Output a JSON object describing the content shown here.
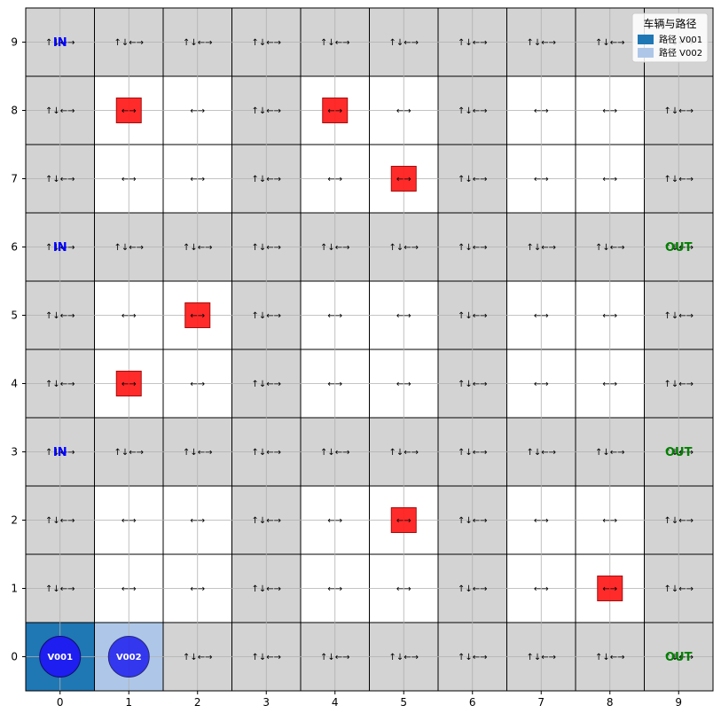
{
  "chart_data": {
    "type": "heatmap",
    "title": "",
    "xlabel": "",
    "ylabel": "",
    "grid_size": [
      10,
      10
    ],
    "x_ticks": [
      "0",
      "1",
      "2",
      "3",
      "4",
      "5",
      "6",
      "7",
      "8",
      "9"
    ],
    "y_ticks": [
      "0",
      "1",
      "2",
      "3",
      "4",
      "5",
      "6",
      "7",
      "8",
      "9"
    ],
    "colors": {
      "aisle": "#d3d3d3",
      "rack": "#ffffff",
      "obstacle": "#ff2020",
      "in_port": "#0000ff",
      "out_port": "#008000",
      "vehicle_fill": "#1e1ef0",
      "vehicle_v001_cell": "#1f77b4",
      "vehicle_v002_cell": "#aec7e8",
      "grid_line": "#000000",
      "gridline_light": "#b0b0b0"
    },
    "aisle_rows": [
      0,
      3,
      6,
      9
    ],
    "aisle_cols": [
      0,
      3,
      6,
      9
    ],
    "directions": {
      "aisle": "↑↓←→",
      "rack": "←→"
    },
    "obstacles": [
      {
        "x": 1,
        "y": 8
      },
      {
        "x": 4,
        "y": 8
      },
      {
        "x": 5,
        "y": 7
      },
      {
        "x": 2,
        "y": 5
      },
      {
        "x": 1,
        "y": 4
      },
      {
        "x": 5,
        "y": 2
      },
      {
        "x": 8,
        "y": 1
      }
    ],
    "ports": [
      {
        "label": "IN",
        "x": 0,
        "y": 9
      },
      {
        "label": "IN",
        "x": 0,
        "y": 6
      },
      {
        "label": "IN",
        "x": 0,
        "y": 3
      },
      {
        "label": "OUT",
        "x": 9,
        "y": 6
      },
      {
        "label": "OUT",
        "x": 9,
        "y": 3
      },
      {
        "label": "OUT",
        "x": 9,
        "y": 0
      }
    ],
    "vehicles": [
      {
        "id": "V001",
        "x": 0,
        "y": 0,
        "legend_label": "路径 V001"
      },
      {
        "id": "V002",
        "x": 1,
        "y": 0,
        "legend_label": "路径 V002"
      }
    ],
    "legend": {
      "title": "车辆与路径",
      "position": "top-right"
    }
  }
}
